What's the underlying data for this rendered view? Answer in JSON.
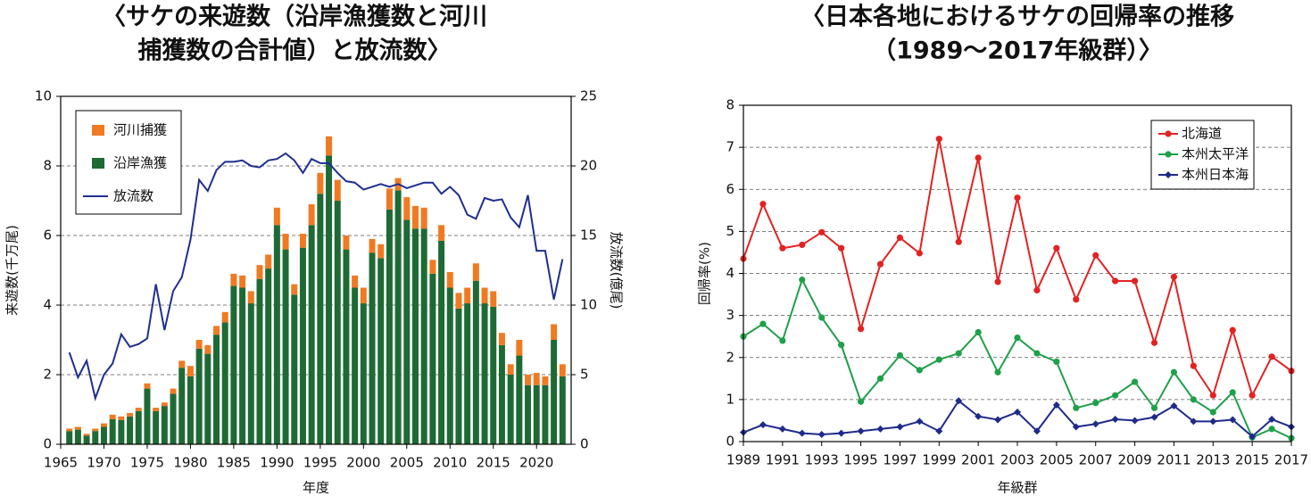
{
  "chart_data": [
    {
      "type": "bar",
      "stacked": true,
      "title": [
        "〈サケの来遊数（沿岸漁獲数と河川",
        "捕獲数の合計値）と放流数〉"
      ],
      "xlabel": "年度",
      "ylabel": "来遊数(千万尾)",
      "y2label": "放流数(億尾)",
      "x": [
        1966,
        1967,
        1968,
        1969,
        1970,
        1971,
        1972,
        1973,
        1974,
        1975,
        1976,
        1977,
        1978,
        1979,
        1980,
        1981,
        1982,
        1983,
        1984,
        1985,
        1986,
        1987,
        1988,
        1989,
        1990,
        1991,
        1992,
        1993,
        1994,
        1995,
        1996,
        1997,
        1998,
        1999,
        2000,
        2001,
        2002,
        2003,
        2004,
        2005,
        2006,
        2007,
        2008,
        2009,
        2010,
        2011,
        2012,
        2013,
        2014,
        2015,
        2016,
        2017,
        2018,
        2019,
        2020,
        2021,
        2022,
        2023
      ],
      "series": [
        {
          "name": "河川捕獲",
          "color": "#f07a22",
          "values": [
            0.07,
            0.08,
            0.05,
            0.07,
            0.1,
            0.13,
            0.1,
            0.1,
            0.1,
            0.15,
            0.1,
            0.1,
            0.15,
            0.2,
            0.3,
            0.25,
            0.25,
            0.25,
            0.3,
            0.35,
            0.35,
            0.35,
            0.4,
            0.4,
            0.5,
            0.45,
            0.3,
            0.4,
            0.6,
            0.6,
            0.55,
            0.6,
            0.4,
            0.35,
            0.45,
            0.4,
            0.4,
            0.6,
            0.35,
            0.65,
            0.65,
            0.6,
            0.4,
            0.45,
            0.45,
            0.45,
            0.45,
            0.5,
            0.45,
            0.45,
            0.35,
            0.3,
            0.45,
            0.3,
            0.35,
            0.25,
            0.45,
            0.35
          ]
        },
        {
          "name": "沿岸漁獲",
          "color": "#1e6a35",
          "values": [
            0.38,
            0.42,
            0.25,
            0.38,
            0.5,
            0.72,
            0.7,
            0.8,
            0.95,
            1.6,
            0.95,
            1.1,
            1.45,
            2.2,
            1.95,
            2.75,
            2.6,
            3.15,
            3.5,
            4.55,
            4.5,
            4.05,
            4.75,
            5.05,
            6.3,
            5.6,
            4.3,
            5.65,
            6.3,
            7.2,
            8.3,
            7.0,
            5.6,
            4.5,
            4.05,
            5.5,
            5.35,
            6.75,
            7.3,
            6.45,
            6.2,
            6.2,
            4.9,
            5.85,
            4.5,
            3.9,
            4.05,
            4.7,
            4.05,
            3.95,
            2.85,
            2.0,
            2.55,
            1.7,
            1.7,
            1.7,
            3.0,
            1.95
          ]
        },
        {
          "name": "放流数",
          "type": "line",
          "axis": "y2",
          "color": "#1e2f8f",
          "values": [
            6.6,
            4.8,
            6.0,
            3.3,
            5.0,
            5.8,
            7.9,
            7.0,
            7.2,
            7.6,
            11.5,
            8.2,
            11.0,
            12.0,
            14.7,
            19.0,
            18.2,
            19.7,
            20.3,
            20.3,
            20.4,
            20.0,
            19.9,
            20.4,
            20.5,
            20.9,
            20.4,
            19.5,
            20.5,
            20.2,
            20.2,
            19.5,
            18.9,
            18.8,
            18.3,
            18.5,
            18.7,
            18.5,
            18.7,
            18.4,
            18.6,
            18.8,
            18.8,
            18.0,
            18.5,
            17.9,
            16.5,
            16.2,
            17.7,
            17.5,
            17.6,
            16.3,
            15.6,
            17.9,
            13.9,
            13.9,
            10.4,
            13.3
          ]
        }
      ],
      "xlim": [
        1965,
        2024
      ],
      "xticks": [
        1965,
        1970,
        1975,
        1980,
        1985,
        1990,
        1995,
        2000,
        2005,
        2010,
        2015,
        2020
      ],
      "ylim": [
        0,
        10
      ],
      "yticks": [
        0,
        2,
        4,
        6,
        8,
        10
      ],
      "y2lim": [
        0,
        25
      ],
      "y2ticks": [
        0,
        5,
        10,
        15,
        20,
        25
      ],
      "grid": true,
      "legend": "upper left"
    },
    {
      "type": "line",
      "title": [
        "〈日本各地におけるサケの回帰率の推移",
        "（1989～2017年級群）〉"
      ],
      "xlabel": "年級群",
      "ylabel": "回帰率(%)",
      "x": [
        1989,
        1990,
        1991,
        1992,
        1993,
        1994,
        1995,
        1996,
        1997,
        1998,
        1999,
        2000,
        2001,
        2002,
        2003,
        2004,
        2005,
        2006,
        2007,
        2008,
        2009,
        2010,
        2011,
        2012,
        2013,
        2014,
        2015,
        2016,
        2017
      ],
      "series": [
        {
          "name": "北海道",
          "color": "#e32222",
          "marker": "circle",
          "values": [
            4.35,
            5.65,
            4.6,
            4.68,
            4.98,
            4.6,
            2.68,
            4.22,
            4.85,
            4.48,
            7.2,
            4.75,
            6.75,
            3.8,
            5.8,
            3.6,
            4.6,
            3.38,
            4.43,
            3.82,
            3.82,
            2.35,
            3.92,
            1.8,
            1.1,
            2.65,
            1.1,
            2.02,
            1.68
          ]
        },
        {
          "name": "本州太平洋",
          "color": "#1fa04a",
          "marker": "circle",
          "values": [
            2.5,
            2.8,
            2.4,
            3.85,
            2.95,
            2.3,
            0.95,
            1.5,
            2.05,
            1.7,
            1.95,
            2.1,
            2.6,
            1.65,
            2.47,
            2.1,
            1.9,
            0.8,
            0.92,
            1.1,
            1.42,
            0.8,
            1.65,
            1.0,
            0.7,
            1.17,
            0.1,
            0.3,
            0.08
          ]
        },
        {
          "name": "本州日本海",
          "color": "#1f2a8a",
          "marker": "diamond",
          "values": [
            0.22,
            0.4,
            0.3,
            0.2,
            0.17,
            0.2,
            0.25,
            0.3,
            0.35,
            0.48,
            0.25,
            0.97,
            0.6,
            0.52,
            0.7,
            0.25,
            0.87,
            0.35,
            0.42,
            0.53,
            0.5,
            0.58,
            0.85,
            0.48,
            0.48,
            0.52,
            0.12,
            0.53,
            0.35
          ]
        }
      ],
      "xlim": [
        1989,
        2017
      ],
      "xticks": [
        1989,
        1991,
        1993,
        1995,
        1997,
        1999,
        2001,
        2003,
        2005,
        2007,
        2009,
        2011,
        2013,
        2015,
        2017
      ],
      "ylim": [
        0,
        8
      ],
      "yticks": [
        0,
        1,
        2,
        3,
        4,
        5,
        6,
        7,
        8
      ],
      "grid": true,
      "legend": "upper right"
    }
  ]
}
